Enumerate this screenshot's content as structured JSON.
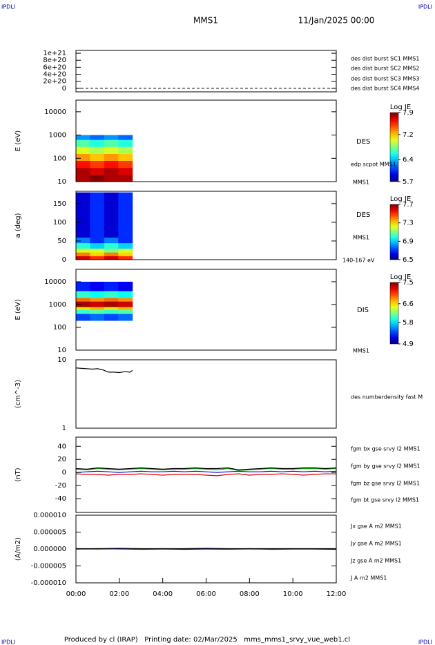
{
  "header": {
    "left_logo": "IPDLI",
    "right_logo": "IPDLI",
    "title": "MMS1",
    "date": "11/Jan/2025 00:00"
  },
  "footer": {
    "text": "Produced by cl (IRAP)   Printing date: 02/Mar/2025   mms_mms1_srvy_vue_web1.cl",
    "left_logo": "IPDLI",
    "right_logo": "IPDLI"
  },
  "chart_data": [
    {
      "type": "line",
      "xlim": [
        0,
        12
      ],
      "ylim": [
        -1e+20,
        1.08e+21
      ],
      "yticks": [
        {
          "value": 1e+21,
          "label": "1e+21"
        },
        {
          "value": 8e+20,
          "label": "8e+20"
        },
        {
          "value": 6e+20,
          "label": "6e+20"
        },
        {
          "value": 4e+20,
          "label": "4e+20"
        },
        {
          "value": 2e+20,
          "label": "2e+20"
        },
        0
      ],
      "reference_line": 0,
      "series": [
        {
          "name": "des dist burst SC1 MMS1",
          "color": "#0000cc"
        },
        {
          "name": "des dist burst SC2 MMS2",
          "color": "#cc00cc"
        },
        {
          "name": "des dist burst SC3 MMS3",
          "color": "#cc0000"
        },
        {
          "name": "des dist burst SC4 MMS4",
          "color": "#00cc00"
        }
      ]
    },
    {
      "type": "heatmap",
      "log": true,
      "ylabel": "E (eV)",
      "xlim": [
        0,
        12
      ],
      "ylim": [
        10,
        31600
      ],
      "yticks": [
        10,
        100,
        1000,
        10000
      ],
      "colormap": "jet",
      "x_bins": [
        0,
        0.65,
        1.3,
        1.95,
        2.6
      ],
      "y_bins": [
        10,
        20,
        40,
        80,
        160,
        320,
        640,
        1000
      ],
      "values": [
        [
          7.8,
          7.9,
          7.8,
          7.8
        ],
        [
          7.8,
          7.7,
          7.8,
          7.7
        ],
        [
          7.6,
          7.5,
          7.6,
          7.5
        ],
        [
          7.3,
          7.2,
          7.3,
          7.2
        ],
        [
          7.0,
          6.9,
          7.0,
          6.9
        ],
        [
          6.7,
          6.6,
          6.7,
          6.6
        ],
        [
          6.3,
          6.2,
          6.3,
          6.2
        ]
      ],
      "colorbar": {
        "title": "Log JE",
        "clim": [
          5.7,
          7.9
        ],
        "ticks": [
          7.9,
          7.2,
          6.4,
          5.7
        ]
      },
      "annotations": [
        "DES",
        "edp scpot MMS1",
        "MMS1"
      ]
    },
    {
      "type": "heatmap",
      "log": false,
      "ylabel": "a (deg)",
      "xlim": [
        0,
        12
      ],
      "ylim": [
        0,
        183
      ],
      "yticks": [
        0,
        50,
        100,
        150
      ],
      "colormap": "jet",
      "x_bins": [
        0,
        0.65,
        1.3,
        1.95,
        2.6
      ],
      "y_bins": [
        0,
        10,
        20,
        30,
        45,
        60,
        180
      ],
      "values": [
        [
          7.6,
          7.5,
          7.6,
          7.5
        ],
        [
          7.4,
          7.3,
          7.4,
          7.3
        ],
        [
          7.2,
          7.2,
          7.1,
          7.2
        ],
        [
          7.0,
          6.9,
          7.0,
          6.9
        ],
        [
          6.8,
          6.7,
          6.8,
          6.7
        ],
        [
          6.6,
          6.7,
          6.6,
          6.7
        ]
      ],
      "colorbar": {
        "title": "Log JE",
        "clim": [
          6.5,
          7.7
        ],
        "ticks": [
          7.7,
          7.3,
          6.9,
          6.5
        ]
      },
      "annotations": [
        "DES",
        "MMS1",
        "140-167 eV"
      ]
    },
    {
      "type": "heatmap",
      "log": true,
      "ylabel": "E (eV)",
      "xlim": [
        0,
        12
      ],
      "ylim": [
        10,
        35000
      ],
      "yticks": [
        10,
        100,
        1000,
        10000
      ],
      "colormap": "jet",
      "x_bins": [
        0,
        0.65,
        1.3,
        1.95,
        2.6
      ],
      "y_bins": [
        200,
        400,
        600,
        800,
        1400,
        2000,
        4000,
        10000
      ],
      "values": [
        [
          5.4,
          5.5,
          5.4,
          5.5
        ],
        [
          6.0,
          6.1,
          6.0,
          6.1
        ],
        [
          6.6,
          6.7,
          6.6,
          6.7
        ],
        [
          7.4,
          7.3,
          7.4,
          7.3
        ],
        [
          6.9,
          6.8,
          6.9,
          6.8
        ],
        [
          6.0,
          5.9,
          6.0,
          5.9
        ],
        [
          5.3,
          5.2,
          5.3,
          5.2
        ]
      ],
      "colorbar": {
        "title": "Log JE",
        "clim": [
          4.9,
          7.5
        ],
        "ticks": [
          7.5,
          6.6,
          5.8,
          4.9
        ]
      },
      "annotations": [
        "DIS",
        "MMS1"
      ]
    },
    {
      "type": "line",
      "log": true,
      "ylabel": "(cm^-3)",
      "xlim": [
        0,
        12
      ],
      "ylim": [
        1,
        10
      ],
      "yticks": [
        10,
        1
      ],
      "series": [
        {
          "color": "#000000",
          "x": [
            0,
            0.25,
            0.5,
            0.75,
            1.0,
            1.25,
            1.5,
            1.75,
            2.0,
            2.25,
            2.5,
            2.6
          ],
          "values": [
            7.6,
            7.5,
            7.4,
            7.3,
            7.4,
            7.1,
            6.6,
            6.6,
            6.5,
            6.7,
            6.6,
            7.0
          ]
        }
      ],
      "annotations": [
        "des numberdensity fast M"
      ]
    },
    {
      "type": "line",
      "ylabel": "(nT)",
      "xlim": [
        0,
        12
      ],
      "ylim": [
        -61,
        54
      ],
      "yticks": [
        40,
        20,
        0,
        -20,
        -40
      ],
      "series": [
        {
          "name": "fgm bx gse srvy l2 MMS1",
          "color": "#dd0000",
          "x": [
            0,
            0.5,
            1,
            1.5,
            2,
            2.5,
            3,
            3.5,
            4,
            4.5,
            5,
            5.5,
            6,
            6.5,
            7,
            7.5,
            8,
            8.5,
            9,
            9.5,
            10,
            10.5,
            11,
            11.5,
            12
          ],
          "values": [
            -2,
            -3,
            -3,
            -4,
            -3,
            -3,
            -2,
            -3,
            -4,
            -3,
            -3,
            -3,
            -4,
            -5,
            -3,
            -2,
            -4,
            -3,
            -3,
            -2,
            -3,
            -4,
            -3,
            -2,
            -2
          ]
        },
        {
          "name": "fgm by gse srvy l2 MMS1",
          "color": "#00bb00",
          "x": [
            0,
            0.5,
            1,
            1.5,
            2,
            2.5,
            3,
            3.5,
            4,
            4.5,
            5,
            5.5,
            6,
            6.5,
            7,
            7.5,
            8,
            8.5,
            9,
            9.5,
            10,
            10.5,
            11,
            11.5,
            12
          ],
          "values": [
            5,
            4,
            6,
            5,
            4,
            5,
            6,
            5,
            4,
            5,
            5,
            6,
            5,
            4,
            6,
            3,
            4,
            5,
            6,
            5,
            5,
            6,
            6,
            5,
            6
          ]
        },
        {
          "name": "fgm bz gse srvy l2 MMS1",
          "color": "#0000dd",
          "x": [
            0,
            0.5,
            1,
            1.5,
            2,
            2.5,
            3,
            3.5,
            4,
            4.5,
            5,
            5.5,
            6,
            6.5,
            7,
            7.5,
            8,
            8.5,
            9,
            9.5,
            10,
            10.5,
            11,
            11.5,
            12
          ],
          "values": [
            0,
            1,
            2,
            1,
            0,
            1,
            2,
            1,
            1,
            2,
            1,
            2,
            1,
            0,
            1,
            2,
            1,
            1,
            2,
            1,
            2,
            1,
            2,
            1,
            2
          ]
        },
        {
          "name": "fgm bt gse srvy l2 MMS1",
          "color": "#000000",
          "x": [
            0,
            0.5,
            1,
            1.5,
            2,
            2.5,
            3,
            3.5,
            4,
            4.5,
            5,
            5.5,
            6,
            6.5,
            7,
            7.5,
            8,
            8.5,
            9,
            9.5,
            10,
            10.5,
            11,
            11.5,
            12
          ],
          "values": [
            6,
            5,
            7,
            6,
            5,
            6,
            7,
            6,
            5,
            6,
            6,
            7,
            6,
            6,
            7,
            4,
            5,
            6,
            7,
            6,
            6,
            7,
            7,
            6,
            7
          ]
        }
      ]
    },
    {
      "type": "line",
      "ylabel": "(A/m2)",
      "xlim": [
        0,
        12
      ],
      "ylim": [
        -1e-05,
        1e-05
      ],
      "yticks": [
        {
          "value": 1e-05,
          "label": "0.000010"
        },
        {
          "value": 5e-06,
          "label": "0.000005"
        },
        {
          "value": 0,
          "label": "0.000000"
        },
        {
          "value": -5e-06,
          "label": "-0.000005"
        },
        {
          "value": -1e-05,
          "label": "-0.000010"
        }
      ],
      "xticks": [
        {
          "value": 0,
          "label": "00:00"
        },
        {
          "value": 2,
          "label": "02:00"
        },
        {
          "value": 4,
          "label": "04:00"
        },
        {
          "value": 6,
          "label": "06:00"
        },
        {
          "value": 8,
          "label": "08:00"
        },
        {
          "value": 10,
          "label": "10:00"
        },
        {
          "value": 12,
          "label": "12:00"
        }
      ],
      "series": [
        {
          "name": "Jx gse A m2 MMS1",
          "color": "#dd0000",
          "x": [
            0,
            1,
            2,
            3,
            4,
            5,
            6,
            7,
            8,
            9,
            10,
            11,
            12
          ],
          "values": [
            0,
            1e-07,
            0,
            -1e-07,
            0,
            0,
            1e-07,
            0,
            0,
            -1e-07,
            0,
            0,
            0
          ]
        },
        {
          "name": "Jy gse A m2 MMS1",
          "color": "#00bb00",
          "x": [
            0,
            1,
            2,
            3,
            4,
            5,
            6,
            7,
            8,
            9,
            10,
            11,
            12
          ],
          "values": [
            1e-07,
            0,
            0,
            0,
            1e-07,
            0,
            0,
            -1e-07,
            0,
            0,
            1e-07,
            0,
            0
          ]
        },
        {
          "name": "Jz gse A m2 MMS1",
          "color": "#0000dd",
          "x": [
            0,
            1,
            2,
            3,
            4,
            5,
            6,
            7,
            8,
            9,
            10,
            11,
            12
          ],
          "values": [
            0,
            0,
            1e-07,
            0,
            0,
            -1e-07,
            0,
            0,
            1e-07,
            0,
            0,
            0,
            -1e-07
          ]
        },
        {
          "name": "J A m2 MMS1",
          "color": "#000000",
          "x": [
            0,
            1,
            2,
            3,
            4,
            5,
            6,
            7,
            8,
            9,
            10,
            11,
            12
          ],
          "values": [
            1e-07,
            1e-07,
            2e-07,
            1e-07,
            1e-07,
            1e-07,
            2e-07,
            1e-07,
            1e-07,
            1e-07,
            1e-07,
            1e-07,
            1e-07
          ]
        }
      ]
    }
  ]
}
